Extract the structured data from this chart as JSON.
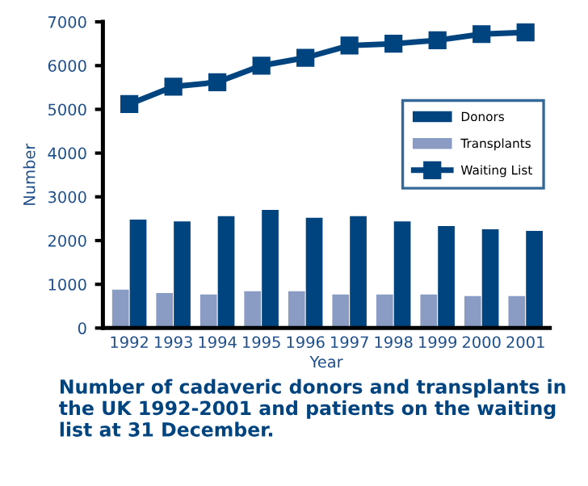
{
  "chart_data": {
    "type": "bar",
    "title": "Number of cadaveric donors and transplants in the UK 1992-2001 and patients on the waiting list at 31 December.",
    "xlabel": "Year",
    "ylabel": "Number",
    "categories": [
      "1992",
      "1993",
      "1994",
      "1995",
      "1996",
      "1997",
      "1998",
      "1999",
      "2000",
      "2001"
    ],
    "series": [
      {
        "name": "Donors",
        "color": "#00447f",
        "values": [
          2480,
          2440,
          2560,
          2700,
          2520,
          2560,
          2440,
          2330,
          2260,
          2220
        ]
      },
      {
        "name": "Transplants",
        "color": "#8a9bc4",
        "values": [
          880,
          800,
          770,
          840,
          840,
          770,
          770,
          770,
          730,
          730
        ]
      },
      {
        "name": "Waiting List",
        "type": "line",
        "color": "#00447f",
        "marker": "square",
        "values": [
          5120,
          5520,
          5620,
          6000,
          6180,
          6460,
          6500,
          6580,
          6720,
          6760
        ]
      }
    ],
    "ylim": [
      0,
      7000
    ],
    "yticks": [
      0,
      1000,
      2000,
      3000,
      4000,
      5000,
      6000,
      7000
    ],
    "grid": false,
    "legend": "right"
  }
}
